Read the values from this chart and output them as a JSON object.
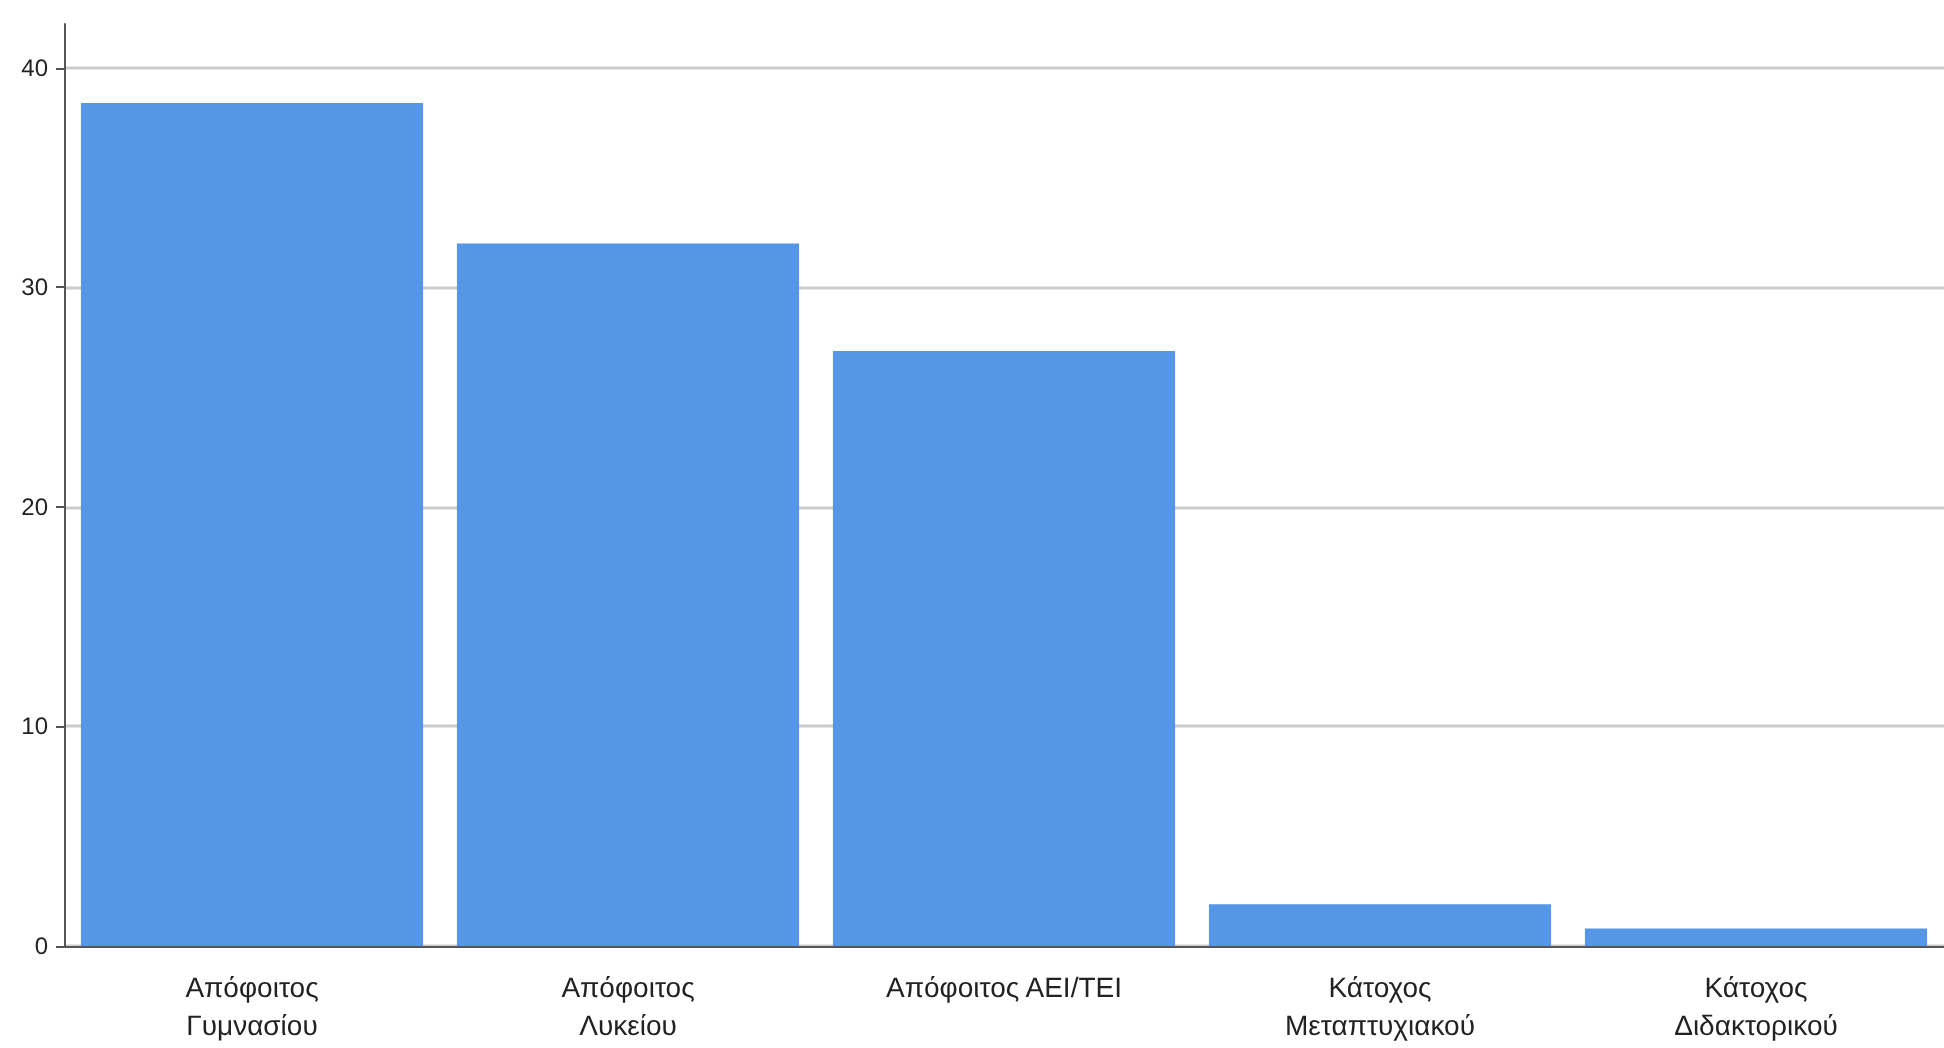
{
  "chart_data": {
    "type": "bar",
    "categories": [
      "Απόφοιτος\nΓυμνασίου",
      "Απόφοιτος\nΛυκείου",
      "Απόφοιτος ΑΕΙ/ΤΕΙ",
      "Κάτοχος\nΜεταπτυχιακού",
      "Κάτοχος\nΔιδακτορικού"
    ],
    "values": [
      38.4,
      32.0,
      27.1,
      1.9,
      0.8
    ],
    "color": "#5596e6",
    "ylim": [
      0,
      42
    ],
    "yticks": [
      0,
      10,
      20,
      30,
      40
    ],
    "grid": "y"
  }
}
